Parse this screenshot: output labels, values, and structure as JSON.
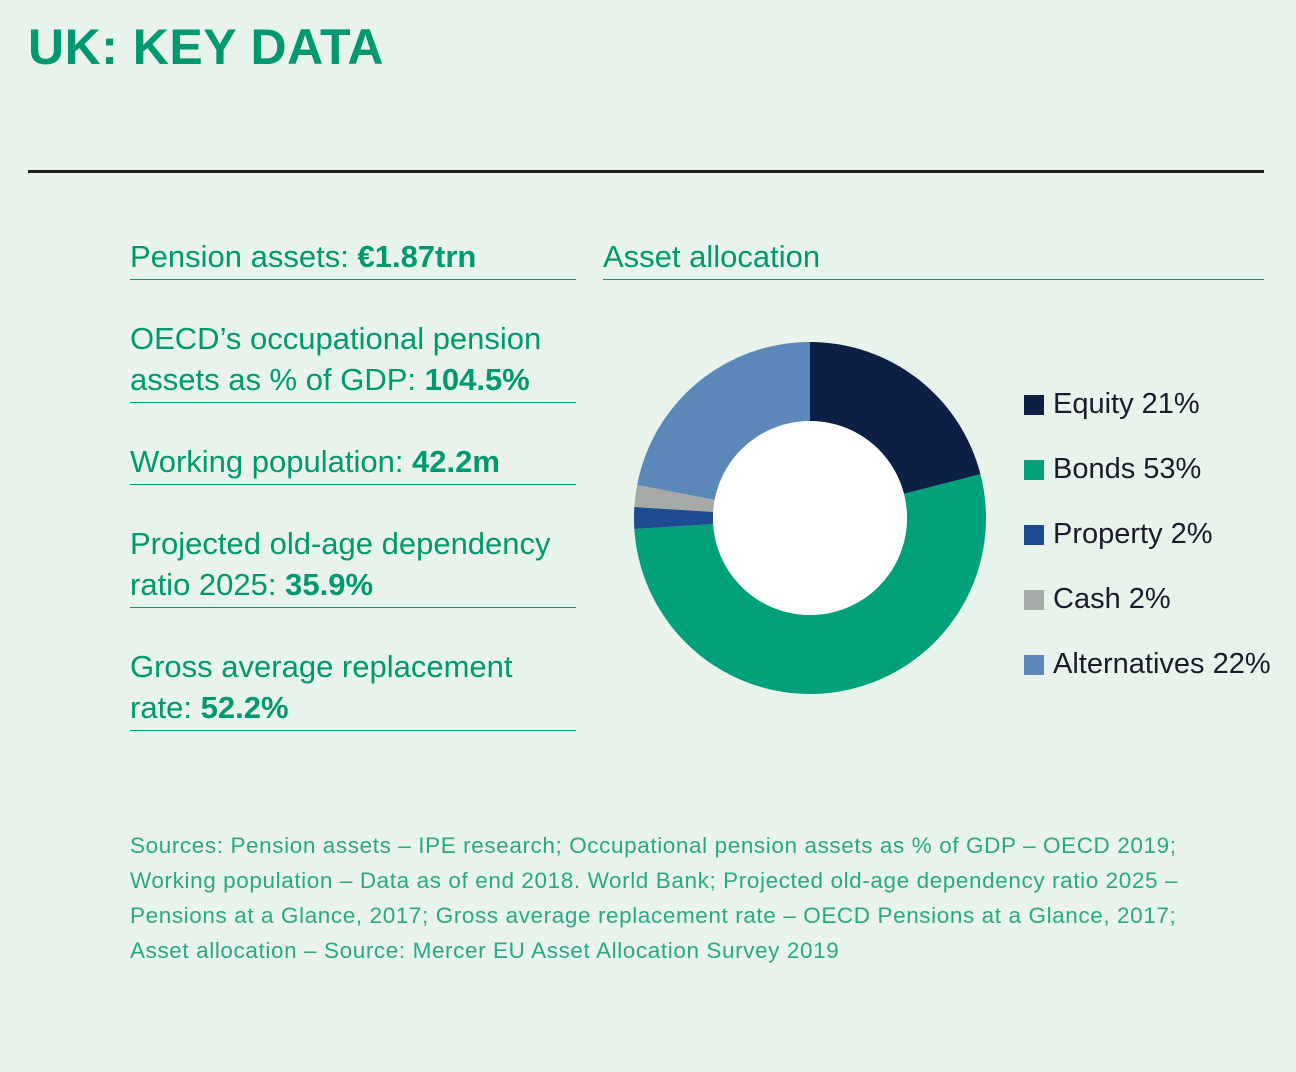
{
  "title": "UK: KEY DATA",
  "stats": [
    {
      "label": "Pension assets: ",
      "value": "€1.87trn"
    },
    {
      "label": "OECD’s occupational pension assets as % of GDP: ",
      "value": "104.5%"
    },
    {
      "label": "Working population: ",
      "value": "42.2m"
    },
    {
      "label": "Projected old-age dependency ratio 2025: ",
      "value": "35.9%"
    },
    {
      "label": "Gross average replacement rate: ",
      "value": "52.2%"
    }
  ],
  "sources": "Sources: Pension assets – IPE research; Occupational pension assets as % of GDP – OECD 2019; Working population – Data as of end 2018. World Bank; Projected old-age dependency ratio 2025 – Pensions at a Glance, 2017; Gross average replacement rate – OECD Pensions at a Glance, 2017; Asset allocation – Source: Mercer EU Asset Allocation Survey 2019",
  "chart_data": {
    "type": "pie",
    "title": "Asset allocation",
    "donut": true,
    "slices": [
      {
        "name": "Equity",
        "value": 21,
        "label": "Equity 21%",
        "color": "#0c1f45"
      },
      {
        "name": "Bonds",
        "value": 53,
        "label": "Bonds 53%",
        "color": "#00a07a"
      },
      {
        "name": "Property",
        "value": 2,
        "label": "Property 2%",
        "color": "#1f4b93"
      },
      {
        "name": "Cash",
        "value": 2,
        "label": "Cash 2%",
        "color": "#a5aaa9"
      },
      {
        "name": "Alternatives",
        "value": 22,
        "label": "Alternatives 22%",
        "color": "#5b88b9"
      }
    ],
    "legend_position": "right"
  }
}
